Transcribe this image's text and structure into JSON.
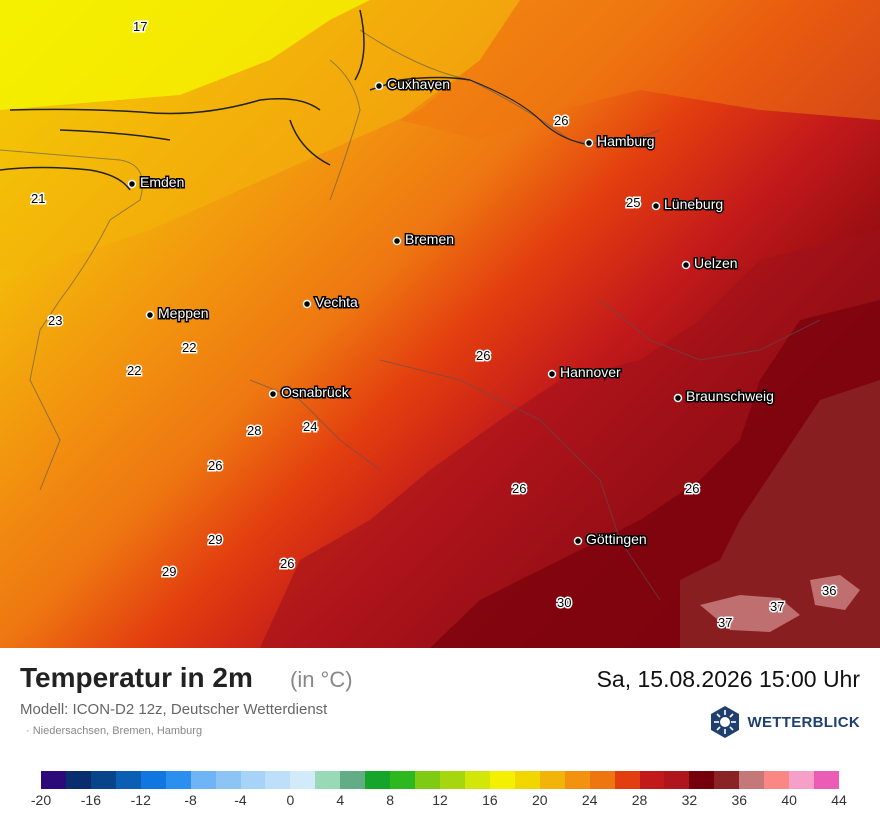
{
  "map": {
    "cities": [
      {
        "name": "Cuxhaven"
      },
      {
        "name": "Hamburg"
      },
      {
        "name": "Emden"
      },
      {
        "name": "Lüneburg"
      },
      {
        "name": "Bremen"
      },
      {
        "name": "Uelzen"
      },
      {
        "name": "Vechta"
      },
      {
        "name": "Meppen"
      },
      {
        "name": "Hannover"
      },
      {
        "name": "Osnabrück"
      },
      {
        "name": "Braunschweig"
      },
      {
        "name": "Göttingen"
      }
    ],
    "temperature_labels": [
      "17",
      "26",
      "21",
      "25",
      "23",
      "22",
      "26",
      "22",
      "24",
      "28",
      "26",
      "26",
      "26",
      "29",
      "29",
      "26",
      "30",
      "36",
      "37",
      "37"
    ]
  },
  "header": {
    "title": "Temperatur in 2m",
    "unit": "(in °C)",
    "datetime": "Sa, 15.08.2026 15:00 Uhr",
    "model": "Modell: ICON-D2 12z, Deutscher Wetterdienst",
    "region": "· Niedersachsen, Bremen, Hamburg"
  },
  "brand": {
    "name": "WETTERBLICK",
    "color": "#1f3f6e",
    "icon": "snowflake-sun-icon"
  },
  "legend": {
    "colors": [
      "#2c0a7a",
      "#0a2d6e",
      "#07448a",
      "#0a5fb5",
      "#1177e0",
      "#2b8ff0",
      "#6fb5f5",
      "#8cc4f6",
      "#a7d3f8",
      "#bddff9",
      "#d3eafb",
      "#98dab8",
      "#63ad86",
      "#16a52b",
      "#2cb81e",
      "#7fcb14",
      "#a6d60d",
      "#d3e60a",
      "#f4f000",
      "#f2d600",
      "#f3b40a",
      "#f2920f",
      "#ee7611",
      "#e33e0f",
      "#c2191b",
      "#b0151d",
      "#75000b",
      "#8a2323",
      "#c57878",
      "#fa8784",
      "#f6a0c9",
      "#ec5bb4"
    ],
    "ticks": [
      "-20",
      "-16",
      "-12",
      "-8",
      "-4",
      "0",
      "4",
      "8",
      "12",
      "16",
      "20",
      "24",
      "28",
      "32",
      "36",
      "40",
      "44"
    ]
  }
}
